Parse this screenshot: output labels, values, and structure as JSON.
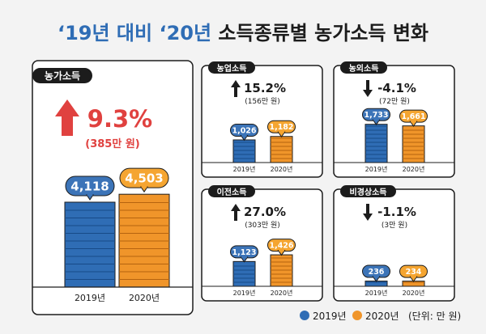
{
  "title": {
    "part1": "‘19년 대비 ‘20년 ",
    "part2": "소득종류별 농가소득 변화"
  },
  "colors": {
    "blue": "#2f6db5",
    "orange": "#f0952a",
    "blue_badge": "#3c74b8",
    "orange_badge": "#f5a531",
    "up_red": "#e0413f",
    "dark": "#1c1c1c",
    "background": "#f3f3f3"
  },
  "legend": {
    "y2019": "2019년",
    "y2020": "2020년",
    "unit": "(단위: 만 원)"
  },
  "chart_data": [
    {
      "type": "bar",
      "title": "농가소득",
      "categories": [
        "2019년",
        "2020년"
      ],
      "values": [
        4118,
        4503
      ],
      "value_labels": [
        "4,118",
        "4,503"
      ],
      "change_direction": "up",
      "change_pct": "9.3%",
      "change_amount": "(385만 원)"
    },
    {
      "type": "bar",
      "title": "농업소득",
      "categories": [
        "2019년",
        "2020년"
      ],
      "values": [
        1026,
        1182
      ],
      "value_labels": [
        "1,026",
        "1,182"
      ],
      "change_direction": "up",
      "change_pct": "15.2%",
      "change_amount": "(156만 원)"
    },
    {
      "type": "bar",
      "title": "농외소득",
      "categories": [
        "2019년",
        "2020년"
      ],
      "values": [
        1733,
        1661
      ],
      "value_labels": [
        "1,733",
        "1,661"
      ],
      "change_direction": "down",
      "change_pct": "-4.1%",
      "change_amount": "(72만 원)"
    },
    {
      "type": "bar",
      "title": "이전소득",
      "categories": [
        "2019년",
        "2020년"
      ],
      "values": [
        1123,
        1426
      ],
      "value_labels": [
        "1,123",
        "1,426"
      ],
      "change_direction": "up",
      "change_pct": "27.0%",
      "change_amount": "(303만 원)"
    },
    {
      "type": "bar",
      "title": "비경상소득",
      "categories": [
        "2019년",
        "2020년"
      ],
      "values": [
        236,
        234
      ],
      "value_labels": [
        "236",
        "234"
      ],
      "change_direction": "down",
      "change_pct": "-1.1%",
      "change_amount": "(3만 원)"
    }
  ]
}
